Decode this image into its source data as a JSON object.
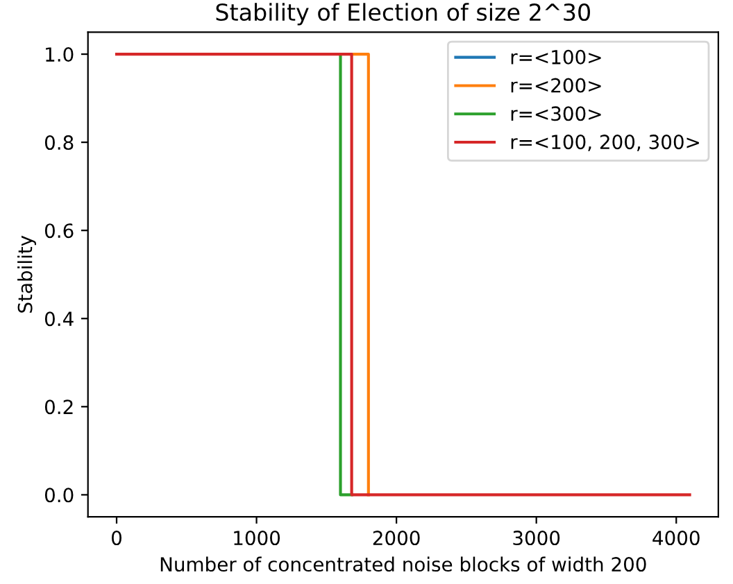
{
  "chart_data": {
    "type": "step",
    "title": "Stability of Election of size 2^30",
    "xlabel": "Number of concentrated noise blocks of width 200",
    "ylabel": "Stability",
    "series": [
      {
        "name": "r=<100>",
        "color": "#1f77b4"
      },
      {
        "name": "r=<200>",
        "color": "#ff7f0e",
        "type": "line",
        "x": [
          1680,
          1800,
          1800
        ],
        "values": [
          1,
          1,
          0
        ]
      },
      {
        "name": "r=<300>",
        "color": "#2ca02c",
        "type": "line",
        "x": [
          1600,
          1600,
          1680
        ],
        "values": [
          1,
          0,
          0
        ]
      },
      {
        "name": "r=<100, 200, 300>",
        "color": "#d62728",
        "x": [
          0,
          1680,
          4096
        ],
        "values": [
          1,
          0,
          0
        ]
      }
    ],
    "xlim": [
      -204.8,
      4300.8
    ],
    "xticks": [
      0,
      1000,
      2000,
      3000,
      4000
    ],
    "ylim": [
      -0.05,
      1.05
    ],
    "yticks": [
      {
        "value": 0,
        "label": "0.0"
      },
      {
        "value": 0.2,
        "label": "0.2"
      },
      {
        "value": 0.4,
        "label": "0.4"
      },
      {
        "value": 0.6,
        "label": "0.6"
      },
      {
        "value": 0.8,
        "label": "0.8"
      },
      {
        "value": 1,
        "label": "1.0"
      }
    ],
    "legend": "top right",
    "grid": false
  }
}
